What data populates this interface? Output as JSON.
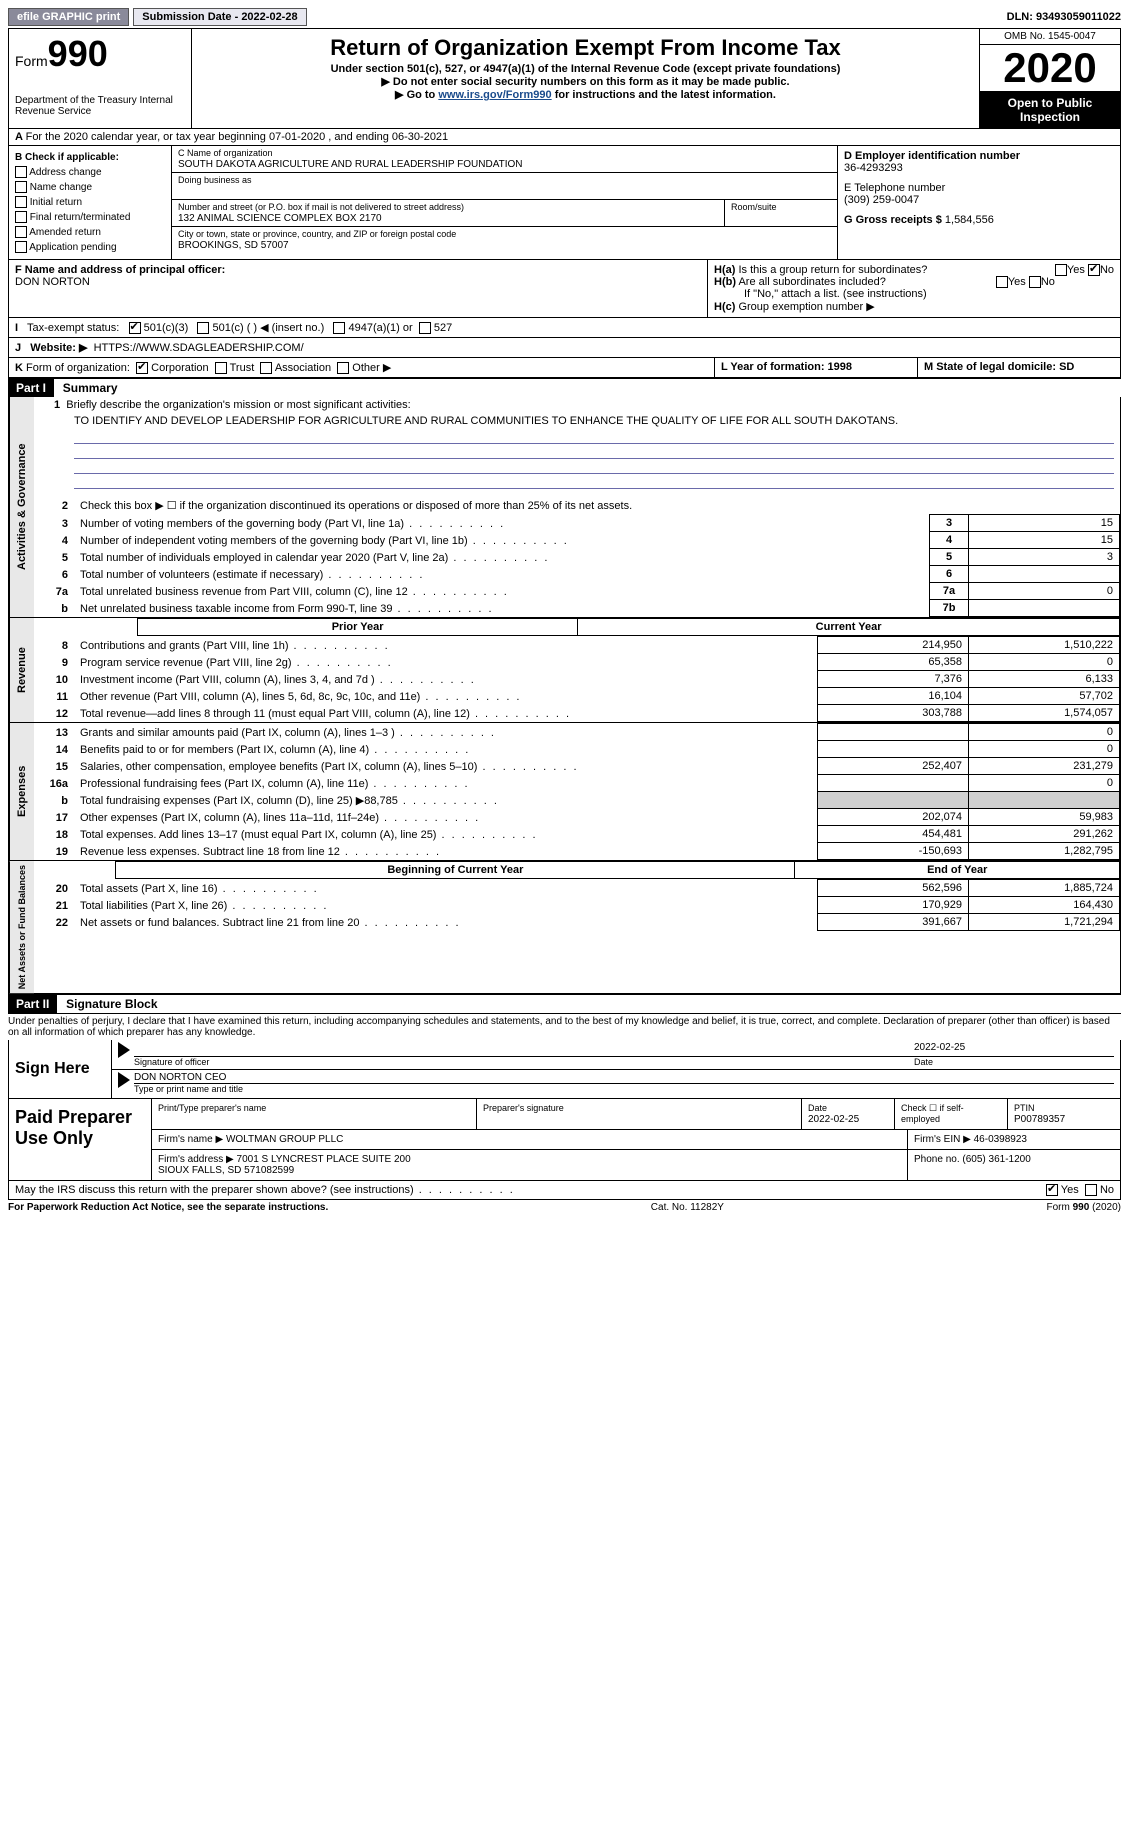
{
  "topbar": {
    "efile": "efile GRAPHIC print",
    "submission": "Submission Date - 2022-02-28",
    "dln": "DLN: 93493059011022"
  },
  "header": {
    "form_label": "Form",
    "form_no": "990",
    "dept": "Department of the Treasury\nInternal Revenue Service",
    "title": "Return of Organization Exempt From Income Tax",
    "subtitle": "Under section 501(c), 527, or 4947(a)(1) of the Internal Revenue Code (except private foundations)",
    "note1": "▶ Do not enter social security numbers on this form as it may be made public.",
    "note2_pre": "▶ Go to ",
    "note2_link": "www.irs.gov/Form990",
    "note2_post": " for instructions and the latest information.",
    "omb": "OMB No. 1545-0047",
    "year": "2020",
    "inspection": "Open to Public Inspection"
  },
  "rowA": "For the 2020 calendar year, or tax year beginning 07-01-2020   , and ending 06-30-2021",
  "b": {
    "header": "B Check if applicable:",
    "addr": "Address change",
    "name": "Name change",
    "initial": "Initial return",
    "final": "Final return/terminated",
    "amended": "Amended return",
    "app": "Application pending"
  },
  "c": {
    "label_name": "C Name of organization",
    "org_name": "SOUTH DAKOTA AGRICULTURE AND RURAL LEADERSHIP FOUNDATION",
    "dba_label": "Doing business as",
    "addr_label": "Number and street (or P.O. box if mail is not delivered to street address)",
    "suite_label": "Room/suite",
    "address": "132 ANIMAL SCIENCE COMPLEX BOX 2170",
    "city_label": "City or town, state or province, country, and ZIP or foreign postal code",
    "city": "BROOKINGS, SD  57007"
  },
  "d": {
    "ein_label": "D Employer identification number",
    "ein": "36-4293293",
    "tel_label": "E Telephone number",
    "tel": "(309) 259-0047",
    "gross_label": "G Gross receipts $",
    "gross": "1,584,556"
  },
  "f": {
    "label": "F Name and address of principal officer:",
    "name": "DON NORTON"
  },
  "h": {
    "a_label": "H(a)",
    "a_text": "Is this a group return for subordinates?",
    "b_label": "H(b)",
    "b_text": "Are all subordinates included?",
    "b_note": "If \"No,\" attach a list. (see instructions)",
    "c_label": "H(c)",
    "c_text": "Group exemption number ▶",
    "yes": "Yes",
    "no": "No"
  },
  "i": {
    "label": "I",
    "text": "Tax-exempt status:",
    "o1": "501(c)(3)",
    "o2": "501(c) (  ) ◀ (insert no.)",
    "o3": "4947(a)(1) or",
    "o4": "527"
  },
  "j": {
    "label": "J",
    "text": "Website: ▶",
    "url": "HTTPS://WWW.SDAGLEADERSHIP.COM/"
  },
  "k": {
    "label": "K",
    "text": "Form of organization:",
    "o1": "Corporation",
    "o2": "Trust",
    "o3": "Association",
    "o4": "Other ▶"
  },
  "l": {
    "text": "L Year of formation: 1998"
  },
  "m": {
    "text": "M State of legal domicile: SD"
  },
  "part1": {
    "header": "Part I",
    "title": "Summary",
    "vert1": "Activities & Governance",
    "vert2": "Revenue",
    "vert3": "Expenses",
    "vert4": "Net Assets or Fund Balances",
    "line1_label": "1",
    "line1": "Briefly describe the organization's mission or most significant activities:",
    "mission": "TO IDENTIFY AND DEVELOP LEADERSHIP FOR AGRICULTURE AND RURAL COMMUNITIES TO ENHANCE THE QUALITY OF LIFE FOR ALL SOUTH DAKOTANS.",
    "line2": "Check this box ▶ ☐  if the organization discontinued its operations or disposed of more than 25% of its net assets.",
    "prior_year": "Prior Year",
    "current_year": "Current Year",
    "beg_year": "Beginning of Current Year",
    "end_year": "End of Year",
    "rows_gov": [
      {
        "n": "3",
        "desc": "Number of voting members of the governing body (Part VI, line 1a)",
        "box": "3",
        "val": "15"
      },
      {
        "n": "4",
        "desc": "Number of independent voting members of the governing body (Part VI, line 1b)",
        "box": "4",
        "val": "15"
      },
      {
        "n": "5",
        "desc": "Total number of individuals employed in calendar year 2020 (Part V, line 2a)",
        "box": "5",
        "val": "3"
      },
      {
        "n": "6",
        "desc": "Total number of volunteers (estimate if necessary)",
        "box": "6",
        "val": ""
      },
      {
        "n": "7a",
        "desc": "Total unrelated business revenue from Part VIII, column (C), line 12",
        "box": "7a",
        "val": "0"
      },
      {
        "n": "b",
        "desc": "Net unrelated business taxable income from Form 990-T, line 39",
        "box": "7b",
        "val": ""
      }
    ],
    "rows_rev": [
      {
        "n": "8",
        "desc": "Contributions and grants (Part VIII, line 1h)",
        "py": "214,950",
        "cy": "1,510,222"
      },
      {
        "n": "9",
        "desc": "Program service revenue (Part VIII, line 2g)",
        "py": "65,358",
        "cy": "0"
      },
      {
        "n": "10",
        "desc": "Investment income (Part VIII, column (A), lines 3, 4, and 7d )",
        "py": "7,376",
        "cy": "6,133"
      },
      {
        "n": "11",
        "desc": "Other revenue (Part VIII, column (A), lines 5, 6d, 8c, 9c, 10c, and 11e)",
        "py": "16,104",
        "cy": "57,702"
      },
      {
        "n": "12",
        "desc": "Total revenue—add lines 8 through 11 (must equal Part VIII, column (A), line 12)",
        "py": "303,788",
        "cy": "1,574,057"
      }
    ],
    "rows_exp": [
      {
        "n": "13",
        "desc": "Grants and similar amounts paid (Part IX, column (A), lines 1–3 )",
        "py": "",
        "cy": "0"
      },
      {
        "n": "14",
        "desc": "Benefits paid to or for members (Part IX, column (A), line 4)",
        "py": "",
        "cy": "0"
      },
      {
        "n": "15",
        "desc": "Salaries, other compensation, employee benefits (Part IX, column (A), lines 5–10)",
        "py": "252,407",
        "cy": "231,279"
      },
      {
        "n": "16a",
        "desc": "Professional fundraising fees (Part IX, column (A), line 11e)",
        "py": "",
        "cy": "0"
      },
      {
        "n": "b",
        "desc": "Total fundraising expenses (Part IX, column (D), line 25) ▶88,785",
        "py": "GREY",
        "cy": "GREY"
      },
      {
        "n": "17",
        "desc": "Other expenses (Part IX, column (A), lines 11a–11d, 11f–24e)",
        "py": "202,074",
        "cy": "59,983"
      },
      {
        "n": "18",
        "desc": "Total expenses. Add lines 13–17 (must equal Part IX, column (A), line 25)",
        "py": "454,481",
        "cy": "291,262"
      },
      {
        "n": "19",
        "desc": "Revenue less expenses. Subtract line 18 from line 12",
        "py": "-150,693",
        "cy": "1,282,795"
      }
    ],
    "rows_net": [
      {
        "n": "20",
        "desc": "Total assets (Part X, line 16)",
        "py": "562,596",
        "cy": "1,885,724"
      },
      {
        "n": "21",
        "desc": "Total liabilities (Part X, line 26)",
        "py": "170,929",
        "cy": "164,430"
      },
      {
        "n": "22",
        "desc": "Net assets or fund balances. Subtract line 21 from line 20",
        "py": "391,667",
        "cy": "1,721,294"
      }
    ]
  },
  "part2": {
    "header": "Part II",
    "title": "Signature Block",
    "penalty": "Under penalties of perjury, I declare that I have examined this return, including accompanying schedules and statements, and to the best of my knowledge and belief, it is true, correct, and complete. Declaration of preparer (other than officer) is based on all information of which preparer has any knowledge.",
    "sign_here": "Sign Here",
    "sig_officer": "Signature of officer",
    "sig_date": "2022-02-25",
    "date_label": "Date",
    "officer_name": "DON NORTON CEO",
    "type_name": "Type or print name and title",
    "paid_prep": "Paid Preparer Use Only",
    "prep_name_label": "Print/Type preparer's name",
    "prep_sig_label": "Preparer's signature",
    "prep_date_label": "Date",
    "prep_date": "2022-02-25",
    "self_emp": "Check ☐ if self-employed",
    "ptin_label": "PTIN",
    "ptin": "P00789357",
    "firm_name_label": "Firm's name    ▶",
    "firm_name": "WOLTMAN GROUP PLLC",
    "firm_ein_label": "Firm's EIN ▶",
    "firm_ein": "46-0398923",
    "firm_addr_label": "Firm's address ▶",
    "firm_addr": "7001 S LYNCREST PLACE SUITE 200\nSIOUX FALLS, SD  571082599",
    "phone_label": "Phone no.",
    "phone": "(605) 361-1200",
    "may_discuss": "May the IRS discuss this return with the preparer shown above? (see instructions)",
    "yes": "Yes",
    "no": "No"
  },
  "footer": {
    "left": "For Paperwork Reduction Act Notice, see the separate instructions.",
    "center": "Cat. No. 11282Y",
    "right": "Form 990 (2020)"
  }
}
